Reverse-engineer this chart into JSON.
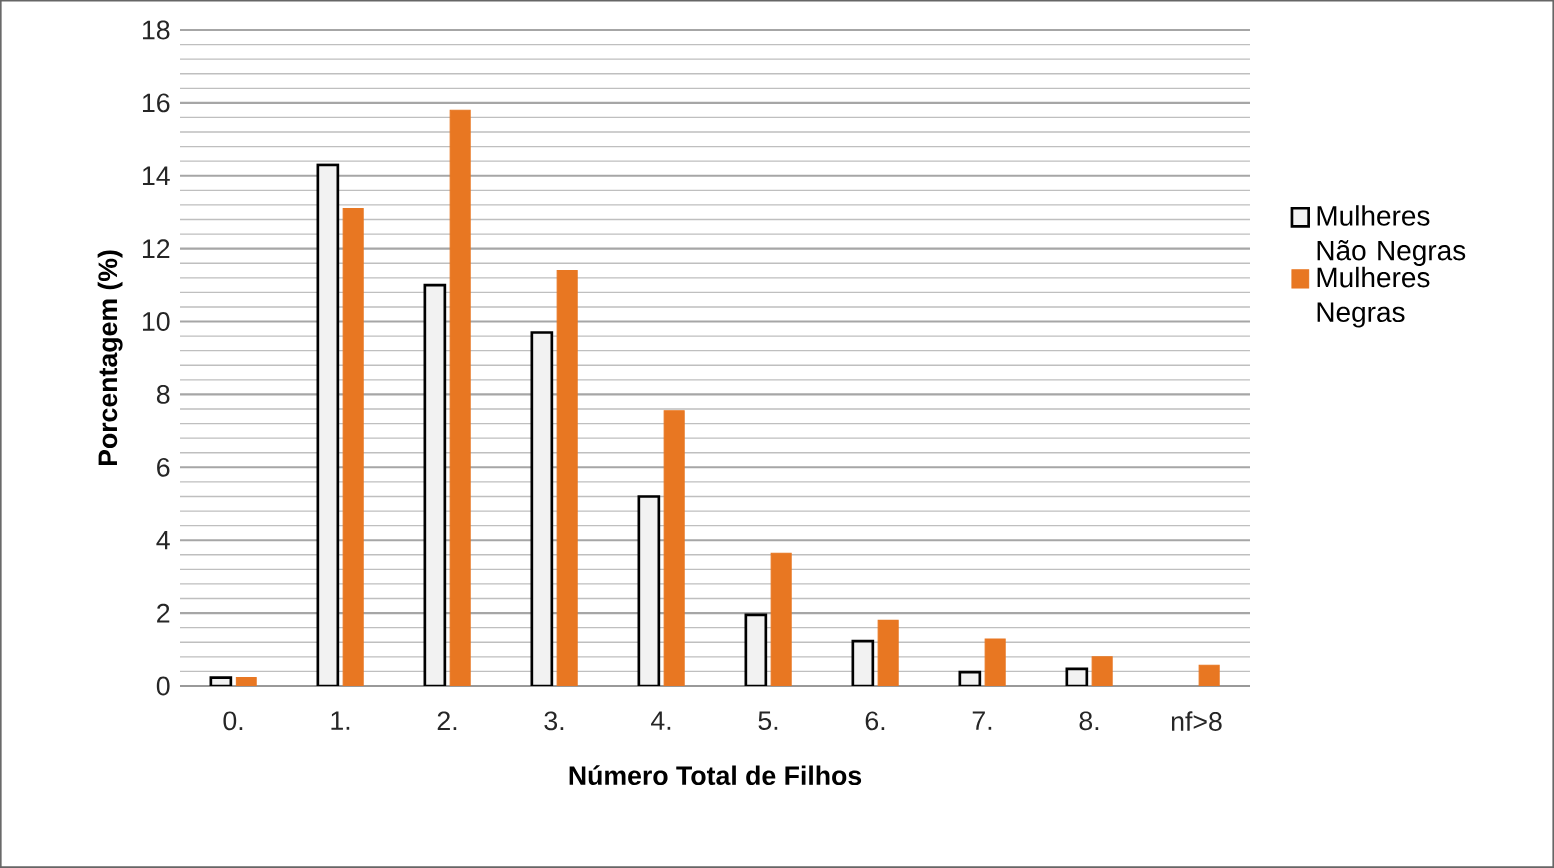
{
  "chart_data": {
    "type": "bar",
    "xlabel": "Número Total de Filhos",
    "ylabel": "Porcentagem (%)",
    "categories": [
      "0.",
      "1.",
      "2.",
      "3.",
      "4.",
      "5.",
      "6.",
      "7.",
      "8.",
      "nf>8"
    ],
    "series": [
      {
        "name": "Mulheres Não Negras",
        "color": "#f2f2f2",
        "values": [
          0.23,
          14.3,
          11.0,
          9.7,
          5.2,
          1.95,
          1.23,
          0.38,
          0.47,
          null
        ]
      },
      {
        "name": "Mulheres Negras",
        "color": "#e87722",
        "values": [
          0.23,
          13.1,
          15.8,
          11.4,
          7.55,
          3.64,
          1.8,
          1.29,
          0.8,
          0.57
        ]
      }
    ],
    "ylim": [
      0,
      18
    ],
    "yticks": [
      0,
      2,
      4,
      6,
      8,
      10,
      12,
      14,
      16,
      18
    ],
    "grid": "y",
    "legend": "right"
  }
}
